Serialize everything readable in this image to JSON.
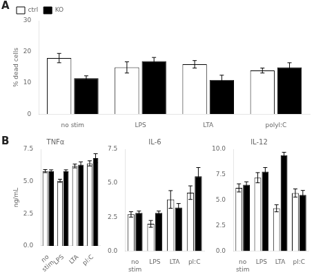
{
  "chart_data": [
    {
      "type": "bar",
      "annotations": [
        "A"
      ],
      "categories": [
        "no stim",
        "LPS",
        "LTA",
        "polyl:C"
      ],
      "series": [
        {
          "name": "ctrl",
          "color": "white",
          "values": [
            18.0,
            15.0,
            16.0,
            14.0
          ],
          "errors": [
            1.5,
            1.8,
            1.2,
            0.8
          ]
        },
        {
          "name": "KO",
          "color": "black",
          "values": [
            11.5,
            17.0,
            11.0,
            15.0
          ],
          "errors": [
            0.8,
            1.2,
            1.5,
            1.5
          ]
        }
      ],
      "ylabel": "% dead cells",
      "ylim": [
        0,
        30
      ],
      "yticks": [
        0,
        10,
        20,
        30
      ],
      "legend": "upper left",
      "grid": false
    },
    {
      "type": "bar",
      "title": "TNFα",
      "annotations": [
        "B"
      ],
      "categories": [
        "no\nstim",
        "LPS",
        "LTA",
        "pl:C"
      ],
      "series": [
        {
          "color": "white",
          "values": [
            5.8,
            5.05,
            6.2,
            6.4
          ],
          "errors": [
            0.12,
            0.12,
            0.15,
            0.2
          ]
        },
        {
          "color": "black",
          "values": [
            5.8,
            5.8,
            6.3,
            6.8
          ],
          "errors": [
            0.1,
            0.1,
            0.22,
            0.35
          ]
        }
      ],
      "ylabel": "ng/mL",
      "ylim": [
        0,
        7.5
      ],
      "yticks": [
        {
          "value": 0,
          "label": "0.0"
        },
        2.5,
        {
          "value": 5,
          "label": "5.0"
        },
        7.5
      ],
      "grid": false
    },
    {
      "type": "bar",
      "title": "IL-6",
      "categories": [
        "no\nstim",
        "LPS",
        "LTA",
        "pl:C"
      ],
      "series": [
        {
          "color": "white",
          "values": [
            2.7,
            2.0,
            3.8,
            4.3
          ],
          "errors": [
            0.2,
            0.25,
            0.65,
            0.5
          ]
        },
        {
          "color": "black",
          "values": [
            2.8,
            2.8,
            3.2,
            5.5
          ],
          "errors": [
            0.15,
            0.15,
            0.3,
            0.65
          ]
        }
      ],
      "ylim": [
        0,
        7.5
      ],
      "yticks": [
        {
          "value": 0,
          "label": "0.0"
        },
        2.5,
        {
          "value": 5,
          "label": "5.0"
        },
        7.5
      ],
      "grid": false
    },
    {
      "type": "bar",
      "title": "IL-12",
      "categories": [
        "no\nstim",
        "LPS",
        "LTA",
        "pl:C"
      ],
      "series": [
        {
          "color": "white",
          "values": [
            6.2,
            7.2,
            4.2,
            5.7
          ],
          "errors": [
            0.4,
            0.5,
            0.35,
            0.4
          ]
        },
        {
          "color": "black",
          "values": [
            6.5,
            7.8,
            9.4,
            5.5
          ],
          "errors": [
            0.3,
            0.4,
            0.3,
            0.45
          ]
        }
      ],
      "ylim": [
        0,
        10.0
      ],
      "yticks": [
        {
          "value": 0,
          "label": "0.0"
        },
        2.5,
        {
          "value": 5,
          "label": "5.0"
        },
        7.5,
        {
          "value": 10,
          "label": "10.0"
        }
      ],
      "grid": false
    }
  ]
}
